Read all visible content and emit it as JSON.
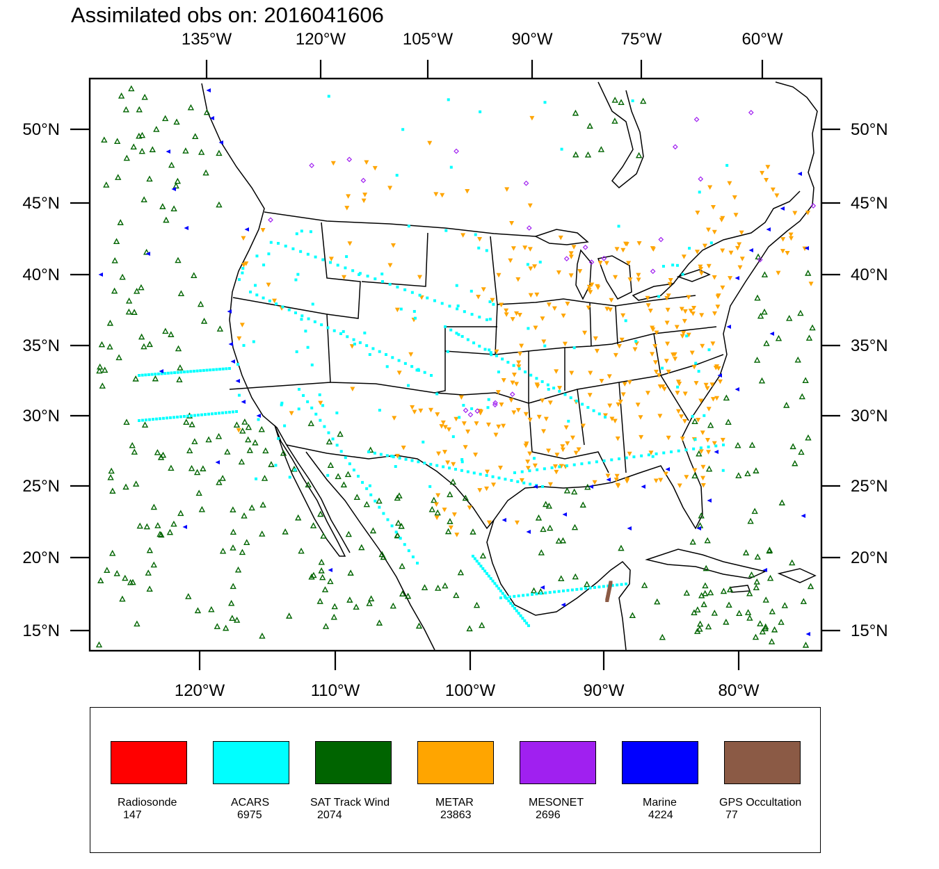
{
  "title": "Assimilated obs on: 2016041606",
  "top_longitude_labels": [
    "135°W",
    "120°W",
    "105°W",
    "90°W",
    "75°W",
    "60°W"
  ],
  "bottom_longitude_labels": [
    "120°W",
    "110°W",
    "100°W",
    "90°W",
    "80°W"
  ],
  "left_latitude_labels": [
    "50°N",
    "45°N",
    "40°N",
    "35°N",
    "30°N",
    "25°N",
    "20°N",
    "15°N"
  ],
  "right_latitude_labels": [
    "50°N",
    "45°N",
    "40°N",
    "35°N",
    "30°N",
    "25°N",
    "20°N",
    "15°N"
  ],
  "legend": [
    {
      "name": "Radiosonde",
      "count": "147",
      "color": "#ff0000"
    },
    {
      "name": "ACARS",
      "count": "6975",
      "color": "#00ffff"
    },
    {
      "name": "SAT Track Wind",
      "count": "2074",
      "color": "#006400"
    },
    {
      "name": "METAR",
      "count": "23863",
      "color": "#ffa500"
    },
    {
      "name": "MESONET",
      "count": "2696",
      "color": "#a020f0"
    },
    {
      "name": "Marine",
      "count": "4224",
      "color": "#0000ff"
    },
    {
      "name": "GPS Occultation",
      "count": "77",
      "color": "#8b5a45"
    }
  ]
}
